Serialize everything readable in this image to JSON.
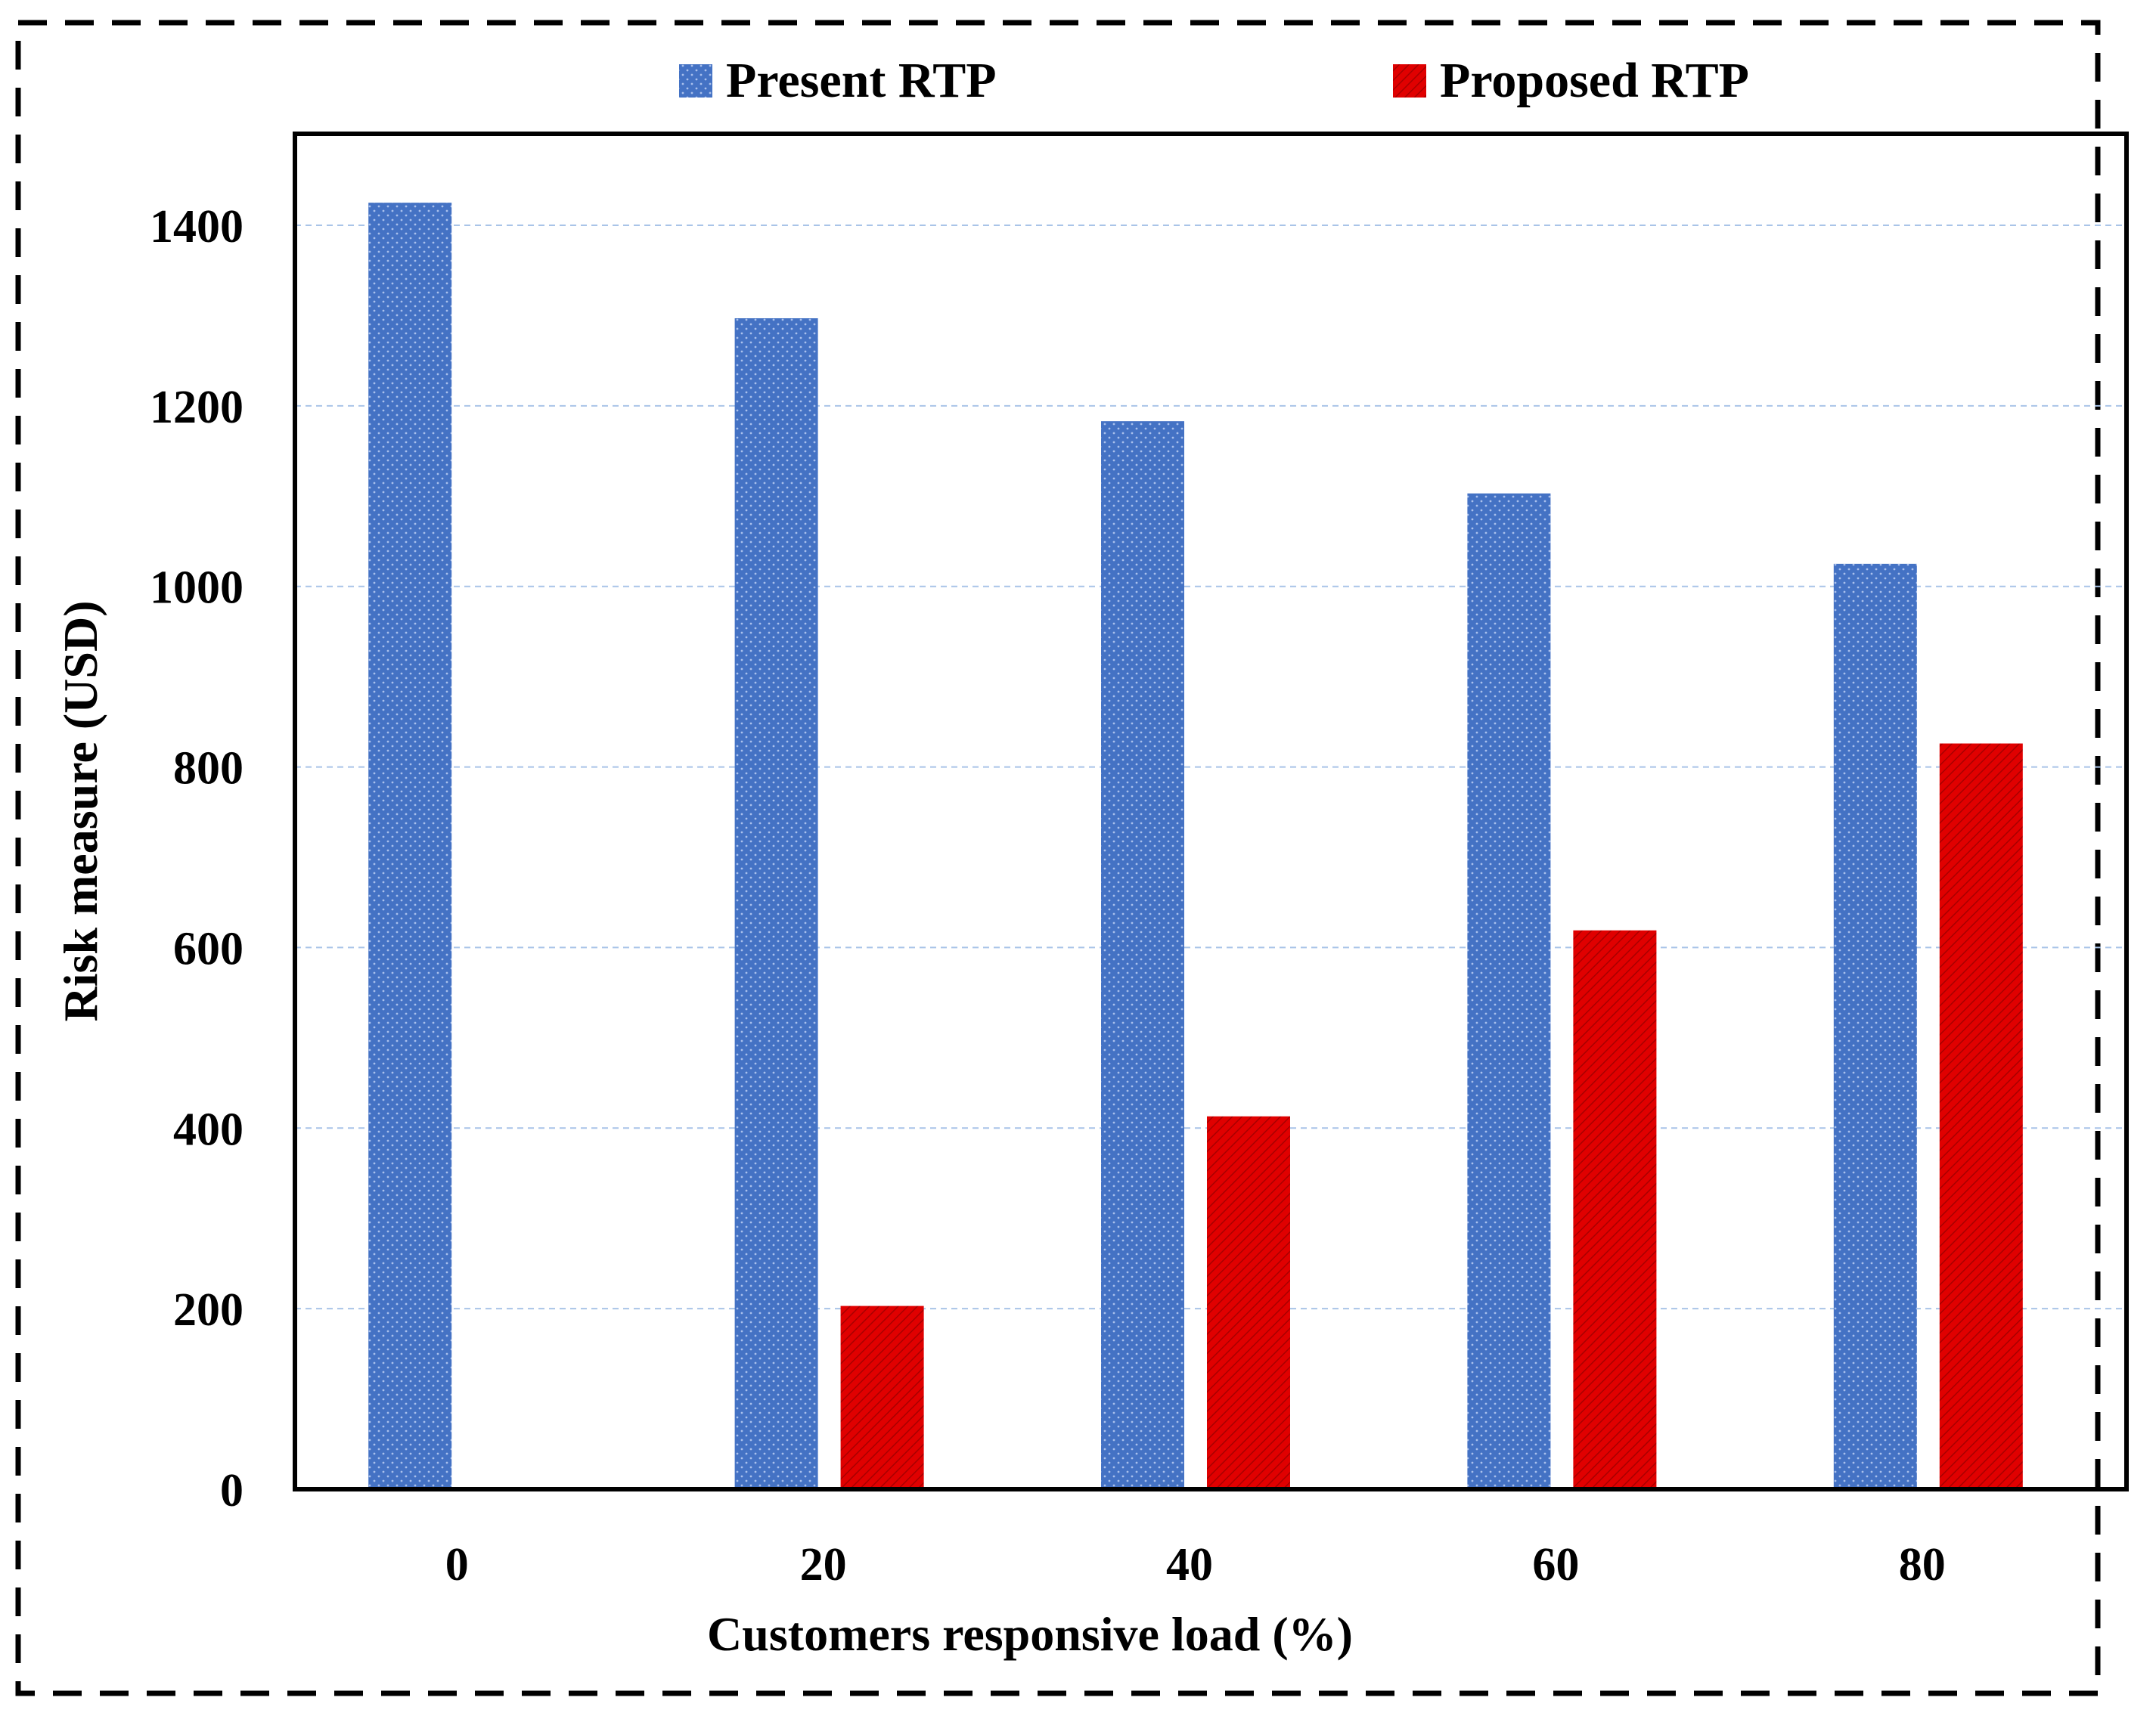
{
  "chart_data": {
    "type": "bar",
    "title": "",
    "xlabel": "Customers  responsive load (%)",
    "ylabel": "Risk measure  (USD)",
    "categories": [
      "0",
      "20",
      "40",
      "60",
      "80"
    ],
    "ylim": [
      0,
      1400
    ],
    "yticks": [
      0,
      200,
      400,
      600,
      800,
      1000,
      1200,
      1400
    ],
    "grid": true,
    "legend_position": "top",
    "series": [
      {
        "name": "Present RTP",
        "color": "#4472C4",
        "values": [
          1425,
          1297,
          1183,
          1103,
          1025
        ]
      },
      {
        "name": "Proposed RTP",
        "color": "#E00000",
        "values": [
          0,
          203,
          413,
          619,
          826
        ]
      }
    ]
  }
}
